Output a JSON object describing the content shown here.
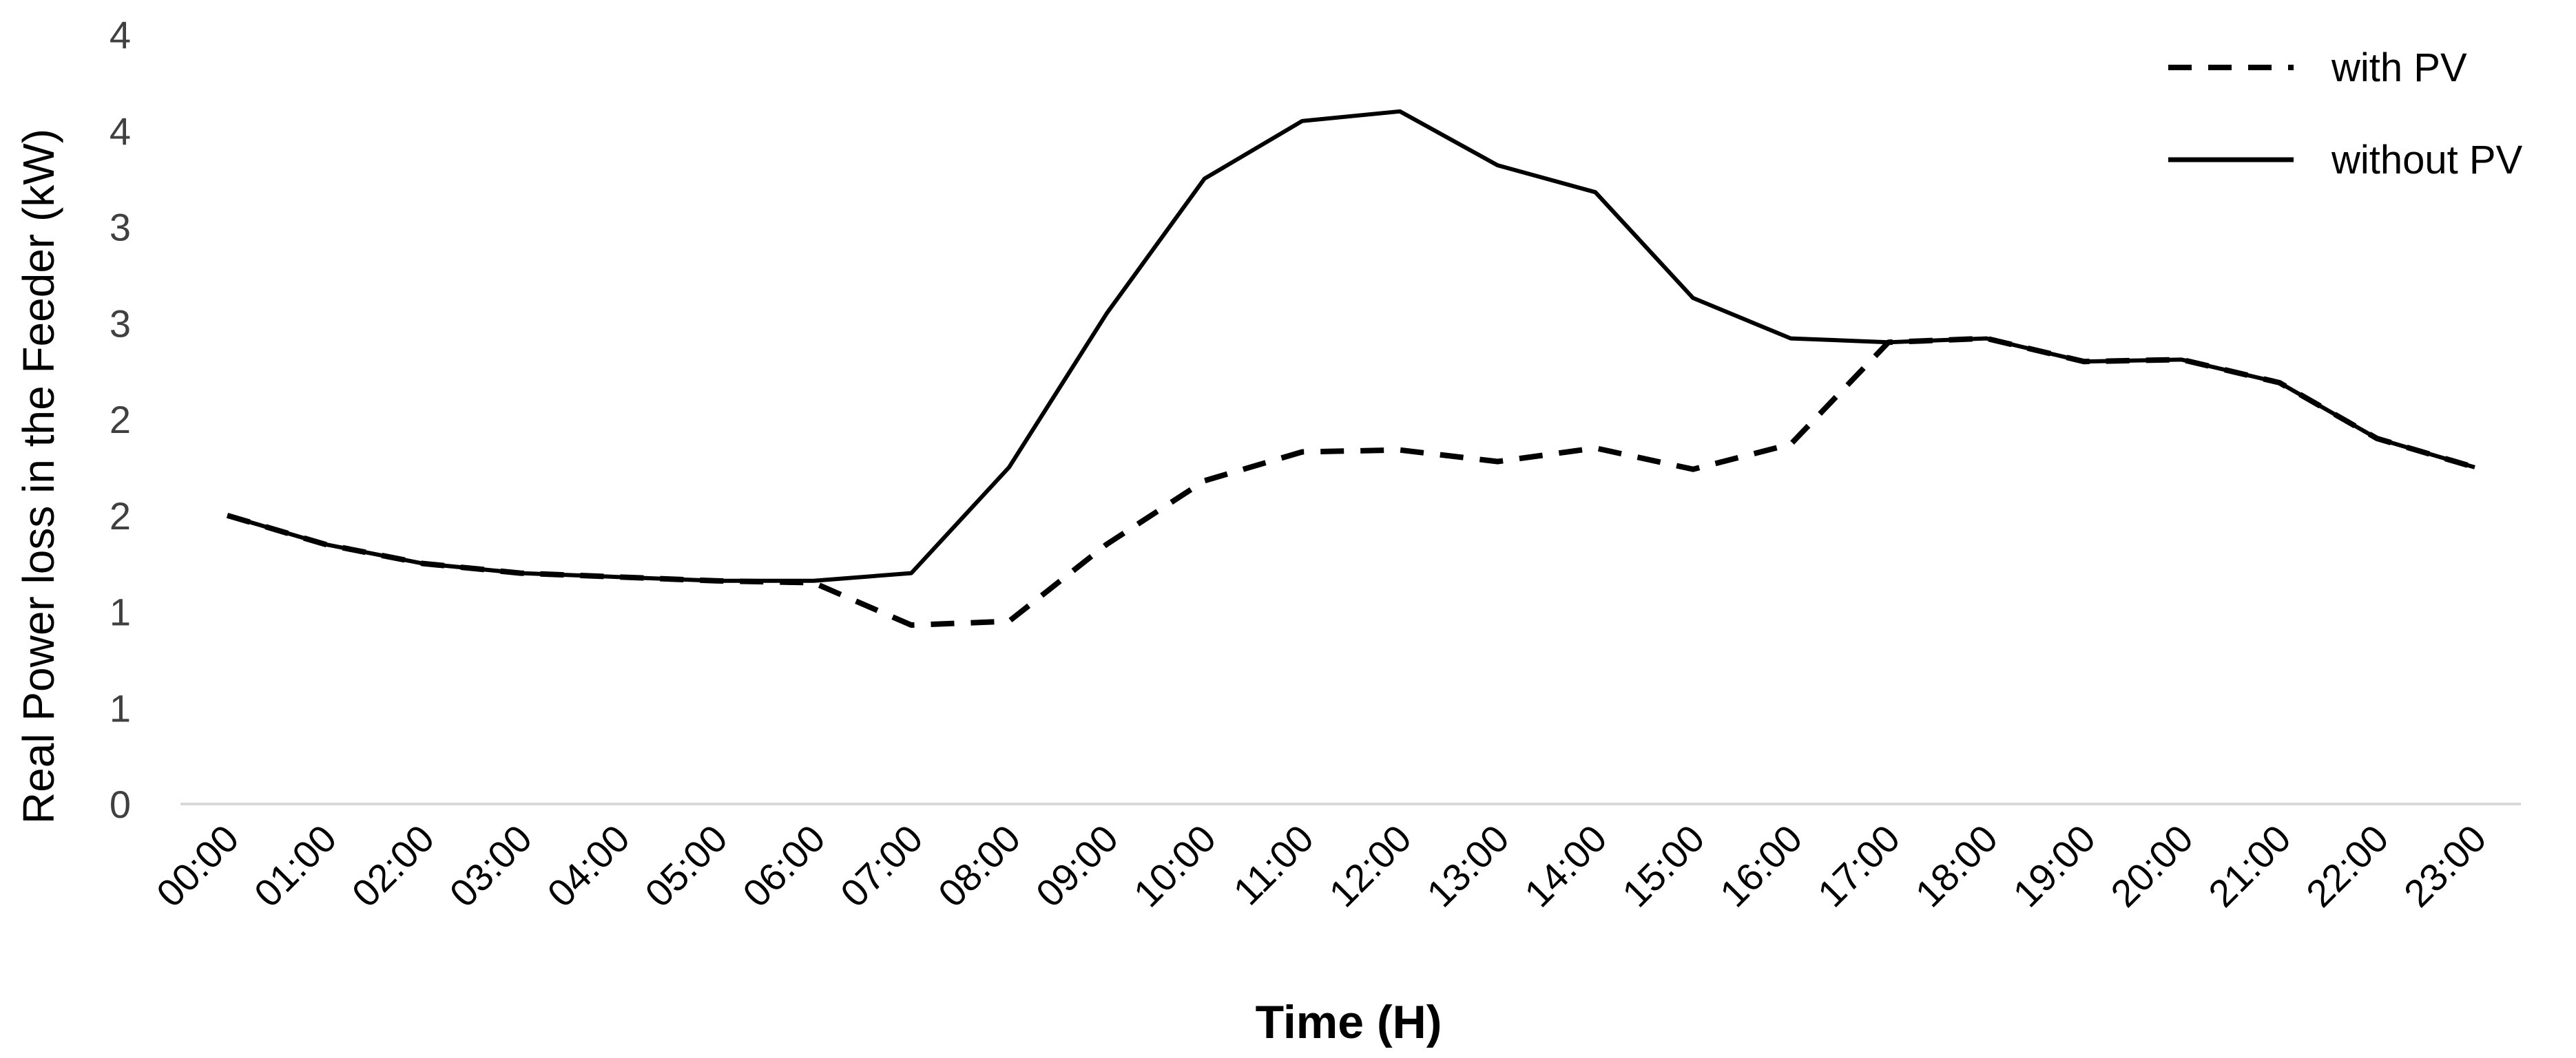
{
  "chart_data": {
    "type": "line",
    "title": "",
    "xlabel": "Time (H)",
    "ylabel": "Real Power loss in the Feeder (kW)",
    "ylim": [
      0,
      4
    ],
    "y_ticks": [
      0,
      0.5,
      1,
      1.5,
      2,
      2.5,
      3,
      3.5,
      4
    ],
    "y_tick_labels": [
      "0",
      "1",
      "1",
      "2",
      "2",
      "3",
      "3",
      "4",
      "4"
    ],
    "categories": [
      "00:00",
      "01:00",
      "02:00",
      "03:00",
      "04:00",
      "05:00",
      "06:00",
      "07:00",
      "08:00",
      "09:00",
      "10:00",
      "11:00",
      "12:00",
      "13:00",
      "14:00",
      "15:00",
      "16:00",
      "17:00",
      "18:00",
      "19:00",
      "20:00",
      "21:00",
      "22:00",
      "23:00"
    ],
    "grid": false,
    "legend_position": "top-right",
    "series": [
      {
        "name": "with PV",
        "style": "dashed",
        "color": "#000000",
        "values": [
          1.5,
          1.35,
          1.25,
          1.2,
          1.18,
          1.16,
          1.15,
          0.93,
          0.95,
          1.35,
          1.68,
          1.83,
          1.84,
          1.78,
          1.85,
          1.74,
          1.87,
          2.4,
          2.42,
          2.3,
          2.31,
          2.19,
          1.9,
          1.75
        ]
      },
      {
        "name": "without PV",
        "style": "solid",
        "color": "#000000",
        "values": [
          1.5,
          1.35,
          1.25,
          1.2,
          1.18,
          1.16,
          1.16,
          1.2,
          1.75,
          2.55,
          3.25,
          3.55,
          3.6,
          3.32,
          3.18,
          2.63,
          2.42,
          2.4,
          2.42,
          2.3,
          2.31,
          2.19,
          1.9,
          1.75
        ]
      }
    ]
  }
}
